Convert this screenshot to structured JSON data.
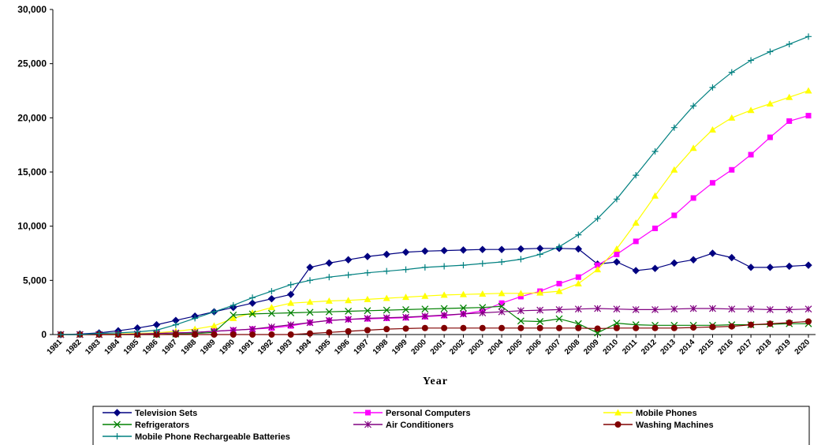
{
  "chart_data": {
    "type": "line",
    "title": "",
    "xlabel": "Year",
    "ylabel": "",
    "ylim": [
      0,
      30000
    ],
    "yticks": [
      "0",
      "5,000",
      "10,000",
      "15,000",
      "20,000",
      "25,000",
      "30,000"
    ],
    "grid": false,
    "legend_position": "bottom",
    "x": [
      "1981",
      "1982",
      "1983",
      "1984",
      "1985",
      "1986",
      "1987",
      "1988",
      "1989",
      "1990",
      "1991",
      "1992",
      "1993",
      "1994",
      "1995",
      "1996",
      "1997",
      "1998",
      "1999",
      "2000",
      "2001",
      "2002",
      "2003",
      "2004",
      "2005",
      "2006",
      "2007",
      "2008",
      "2009",
      "2010",
      "2011",
      "2012",
      "2013",
      "2014",
      "2015",
      "2016",
      "2017",
      "2018",
      "2019",
      "2020"
    ],
    "series": [
      {
        "name": "Television Sets",
        "color": "#000080",
        "marker": "diamond",
        "values": [
          0,
          50,
          150,
          350,
          600,
          900,
          1300,
          1700,
          2100,
          2500,
          2900,
          3300,
          3700,
          6200,
          6600,
          6900,
          7200,
          7400,
          7600,
          7700,
          7750,
          7800,
          7850,
          7850,
          7900,
          7950,
          7950,
          7900,
          6500,
          6700,
          5900,
          6100,
          6600,
          6900,
          7500,
          7100,
          6200,
          6200,
          6300,
          6400
        ]
      },
      {
        "name": "Personal Computers",
        "color": "#ff00ff",
        "marker": "square",
        "values": [
          0,
          0,
          0,
          20,
          50,
          100,
          150,
          200,
          300,
          400,
          500,
          600,
          800,
          1100,
          1300,
          1400,
          1450,
          1500,
          1550,
          1650,
          1750,
          1900,
          2200,
          2900,
          3500,
          4000,
          4700,
          5300,
          6400,
          7400,
          8600,
          9800,
          11000,
          12600,
          14000,
          15200,
          16600,
          18200,
          19700,
          20200
        ]
      },
      {
        "name": "Mobile Phones",
        "color": "#ffff00",
        "marker": "triangle",
        "values": [
          0,
          0,
          0,
          50,
          100,
          150,
          300,
          500,
          800,
          1500,
          2000,
          2500,
          2900,
          3000,
          3100,
          3150,
          3250,
          3350,
          3450,
          3550,
          3650,
          3700,
          3750,
          3800,
          3800,
          3850,
          4000,
          4700,
          6000,
          7900,
          10300,
          12800,
          15200,
          17200,
          18900,
          20000,
          20700,
          21300,
          21900,
          22500
        ]
      },
      {
        "name": "Refrigerators",
        "color": "#008000",
        "marker": "x",
        "values": [
          0,
          0,
          0,
          0,
          0,
          0,
          50,
          100,
          200,
          1800,
          1900,
          1950,
          2000,
          2050,
          2100,
          2150,
          2200,
          2250,
          2300,
          2350,
          2400,
          2450,
          2500,
          2600,
          1250,
          1200,
          1450,
          1000,
          150,
          1050,
          900,
          850,
          850,
          850,
          850,
          900,
          900,
          950,
          1000,
          1000
        ]
      },
      {
        "name": "Air Conditioners",
        "color": "#800080",
        "marker": "star",
        "values": [
          0,
          0,
          0,
          0,
          50,
          100,
          150,
          200,
          300,
          400,
          500,
          700,
          900,
          1100,
          1300,
          1400,
          1500,
          1550,
          1600,
          1700,
          1800,
          1900,
          2000,
          2100,
          2200,
          2250,
          2300,
          2350,
          2400,
          2350,
          2300,
          2300,
          2350,
          2400,
          2400,
          2350,
          2350,
          2300,
          2300,
          2350
        ]
      },
      {
        "name": "Washing Machines",
        "color": "#800000",
        "marker": "circle",
        "values": [
          0,
          0,
          0,
          0,
          0,
          0,
          0,
          0,
          0,
          0,
          0,
          0,
          0,
          100,
          200,
          300,
          400,
          500,
          550,
          600,
          600,
          600,
          600,
          600,
          600,
          600,
          600,
          600,
          550,
          600,
          600,
          600,
          600,
          650,
          700,
          750,
          900,
          1000,
          1100,
          1200
        ]
      },
      {
        "name": "Mobile Phone Rechargeable Batteries",
        "color": "#008080",
        "marker": "plus",
        "values": [
          0,
          0,
          100,
          150,
          250,
          400,
          900,
          1500,
          2100,
          2700,
          3400,
          4000,
          4600,
          5000,
          5300,
          5500,
          5700,
          5850,
          6000,
          6200,
          6300,
          6400,
          6550,
          6700,
          6950,
          7400,
          8100,
          9200,
          10700,
          12500,
          14700,
          16900,
          19100,
          21100,
          22800,
          24200,
          25300,
          26100,
          26800,
          27500
        ]
      }
    ]
  }
}
